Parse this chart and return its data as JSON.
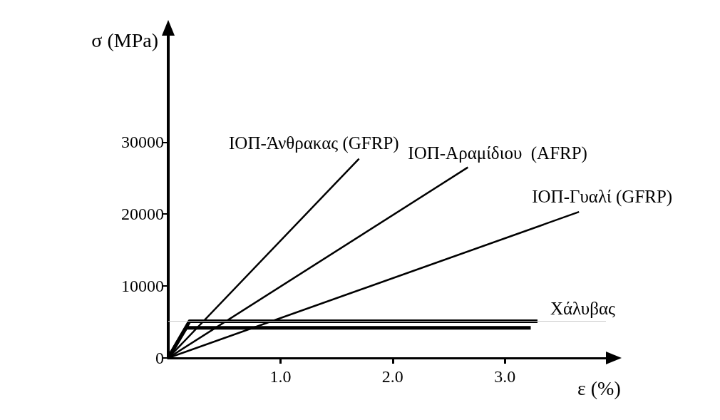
{
  "chart_data": {
    "type": "line",
    "xlabel": "ε (%)",
    "ylabel": "σ (MPa)",
    "xlim": [
      0,
      3.9
    ],
    "ylim": [
      0,
      45000
    ],
    "xticks": [
      {
        "value": 1,
        "label": "1.0"
      },
      {
        "value": 2,
        "label": "2.0"
      },
      {
        "value": 3,
        "label": "3.0"
      }
    ],
    "yticks": [
      0,
      10000,
      20000,
      30000
    ],
    "grid": false,
    "legend": false,
    "marker": "none",
    "line_style": "solid",
    "ref_lines": [
      {
        "axis": "y",
        "value": 5100,
        "color": "#cccccc"
      }
    ],
    "series": [
      {
        "name": "ΙΟΠ-Άνθρακας (GFRP)",
        "color": "#000000",
        "x": [
          0,
          1.7
        ],
        "values": [
          0,
          27700
        ]
      },
      {
        "name": "ΙΟΠ-Αραμίδιου  (AFRP)",
        "color": "#000000",
        "x": [
          0,
          2.67
        ],
        "values": [
          0,
          26500
        ]
      },
      {
        "name": "ΙΟΠ-Γυαλί (GFRP)",
        "color": "#000000",
        "x": [
          0,
          3.66
        ],
        "values": [
          0,
          20300
        ]
      },
      {
        "name": "Χάλυβας",
        "color": "#000000",
        "x": [
          0,
          0.19,
          3.29
        ],
        "values": [
          0,
          5100,
          5100
        ]
      },
      {
        "color": "#000000",
        "x": [
          0,
          0.16,
          3.23
        ],
        "values": [
          0,
          4200,
          4200
        ]
      }
    ]
  }
}
